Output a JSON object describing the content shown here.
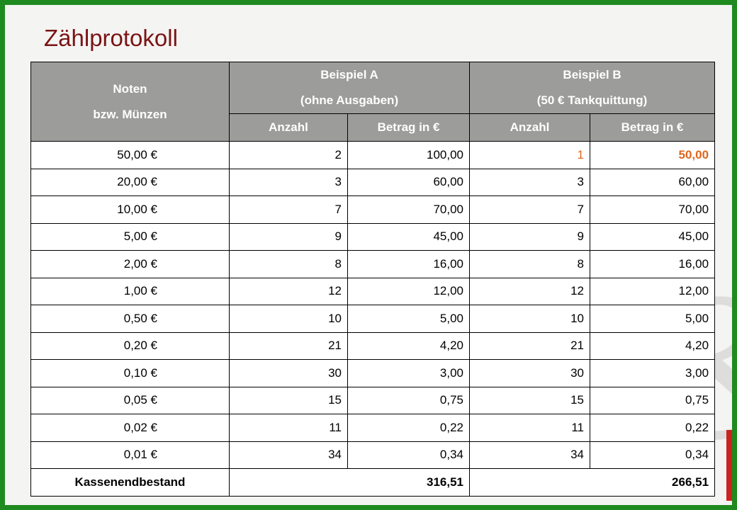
{
  "title": "Zählprotokoll",
  "table": {
    "header": {
      "col0_line1": "Noten",
      "col0_line2": "bzw. Münzen",
      "groupA_line1": "Beispiel A",
      "groupA_line2": "(ohne Ausgaben)",
      "groupB_line1": "Beispiel B",
      "groupB_line2": "(50 € Tankquittung)",
      "sub": [
        "Anzahl",
        "Betrag in €",
        "Anzahl",
        "Betrag in €"
      ]
    },
    "rows": [
      {
        "denom": "50,00 €",
        "a_count": "2",
        "a_amount": "100,00",
        "b_count": "1",
        "b_amount": "50,00"
      },
      {
        "denom": "20,00 €",
        "a_count": "3",
        "a_amount": "60,00",
        "b_count": "3",
        "b_amount": "60,00"
      },
      {
        "denom": "10,00 €",
        "a_count": "7",
        "a_amount": "70,00",
        "b_count": "7",
        "b_amount": "70,00"
      },
      {
        "denom": "5,00 €",
        "a_count": "9",
        "a_amount": "45,00",
        "b_count": "9",
        "b_amount": "45,00"
      },
      {
        "denom": "2,00 €",
        "a_count": "8",
        "a_amount": "16,00",
        "b_count": "8",
        "b_amount": "16,00"
      },
      {
        "denom": "1,00 €",
        "a_count": "12",
        "a_amount": "12,00",
        "b_count": "12",
        "b_amount": "12,00"
      },
      {
        "denom": "0,50 €",
        "a_count": "10",
        "a_amount": "5,00",
        "b_count": "10",
        "b_amount": "5,00"
      },
      {
        "denom": "0,20 €",
        "a_count": "21",
        "a_amount": "4,20",
        "b_count": "21",
        "b_amount": "4,20"
      },
      {
        "denom": "0,10 €",
        "a_count": "30",
        "a_amount": "3,00",
        "b_count": "30",
        "b_amount": "3,00"
      },
      {
        "denom": "0,05 €",
        "a_count": "15",
        "a_amount": "0,75",
        "b_count": "15",
        "b_amount": "0,75"
      },
      {
        "denom": "0,02 €",
        "a_count": "11",
        "a_amount": "0,22",
        "b_count": "11",
        "b_amount": "0,22"
      },
      {
        "denom": "0,01 €",
        "a_count": "34",
        "a_amount": "0,34",
        "b_count": "34",
        "b_amount": "0,34"
      }
    ],
    "footer": {
      "label": "Kassenendbestand",
      "a_total": "316,51",
      "b_total": "266,51"
    }
  },
  "colors": {
    "border_green": "#1f8a1f",
    "title": "#7a1414",
    "header_bg": "#9c9c9a",
    "highlight": "#e0661c"
  }
}
